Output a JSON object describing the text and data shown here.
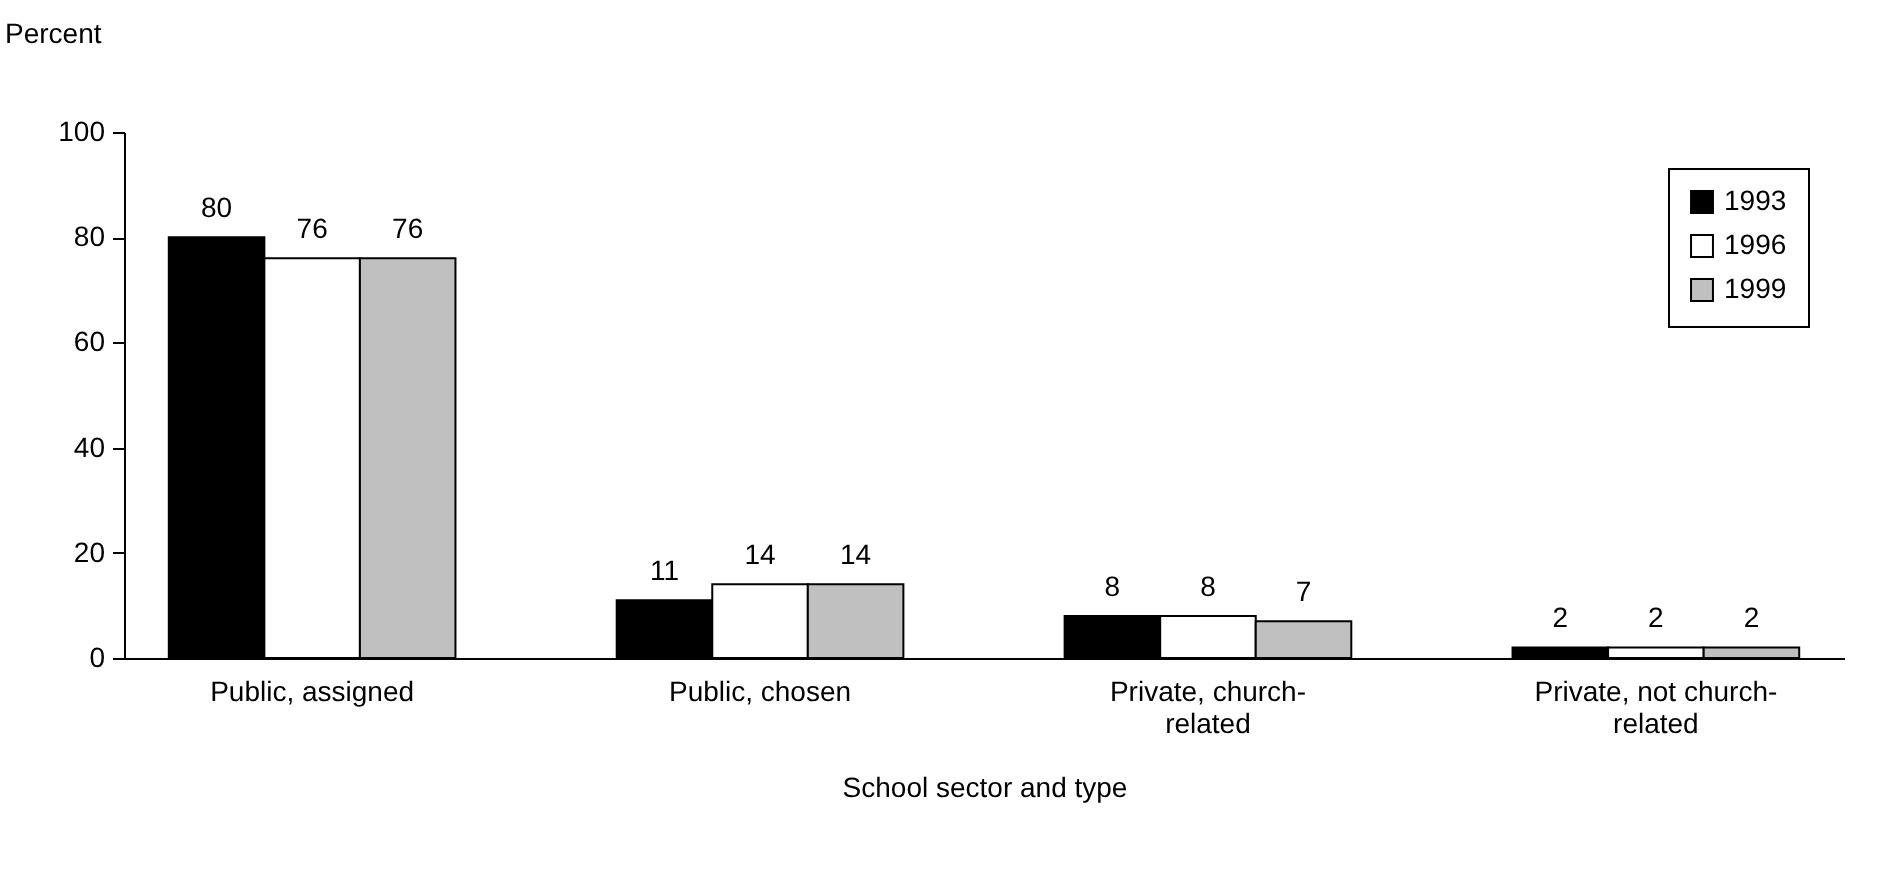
{
  "chart_data": {
    "type": "bar",
    "xlabel": "School sector and type",
    "ylabel": "Percent",
    "categories": [
      "Public, assigned",
      "Public, chosen",
      "Private, church-related",
      "Private, not church-related"
    ],
    "series": [
      {
        "name": "1993",
        "color": "#000000",
        "values": [
          80,
          11,
          8,
          2
        ]
      },
      {
        "name": "1996",
        "color": "#ffffff",
        "values": [
          76,
          14,
          8,
          2
        ]
      },
      {
        "name": "1999",
        "color": "#c0c0c0",
        "values": [
          76,
          14,
          7,
          2
        ]
      }
    ],
    "ylim": [
      0,
      100
    ],
    "yticks": [
      0,
      20,
      40,
      60,
      80,
      100
    ],
    "grid": false,
    "legend": "top right",
    "data_labels": true
  }
}
